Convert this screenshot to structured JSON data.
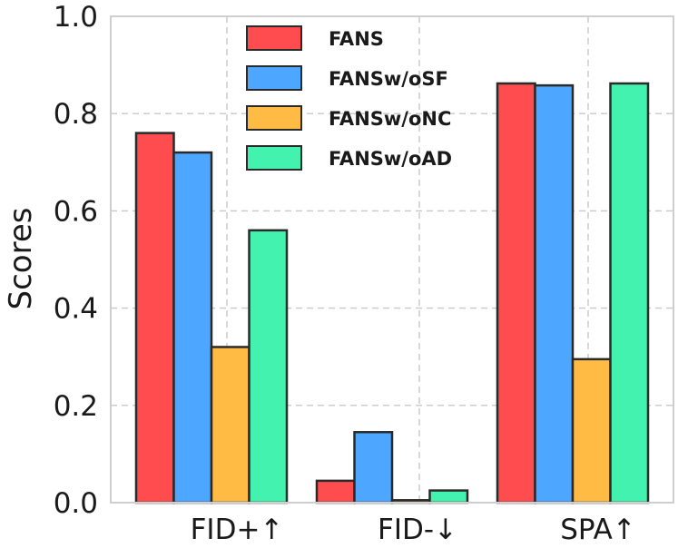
{
  "chart_data": {
    "type": "bar",
    "title": "",
    "xlabel": "",
    "ylabel": "Scores",
    "ylim": [
      0,
      1.0
    ],
    "yticks": [
      "0.0",
      "0.2",
      "0.4",
      "0.6",
      "0.8",
      "1.0"
    ],
    "ytick_values": [
      0,
      0.2,
      0.4,
      0.6,
      0.8,
      1.0
    ],
    "categories": [
      "FID+↑",
      "FID-↓",
      "SPA↑"
    ],
    "grid": true,
    "legend_position": "top-center",
    "series": [
      {
        "name": "FANS",
        "color": "#ff4d4f",
        "values": [
          0.76,
          0.045,
          0.862
        ]
      },
      {
        "name": "FANSw/oSF",
        "color": "#4da6ff",
        "values": [
          0.72,
          0.145,
          0.858
        ]
      },
      {
        "name": "FANSw/oNC",
        "color": "#ffbb44",
        "values": [
          0.32,
          0.005,
          0.295
        ]
      },
      {
        "name": "FANSw/oAD",
        "color": "#44f2b0",
        "values": [
          0.56,
          0.025,
          0.862
        ]
      }
    ]
  }
}
